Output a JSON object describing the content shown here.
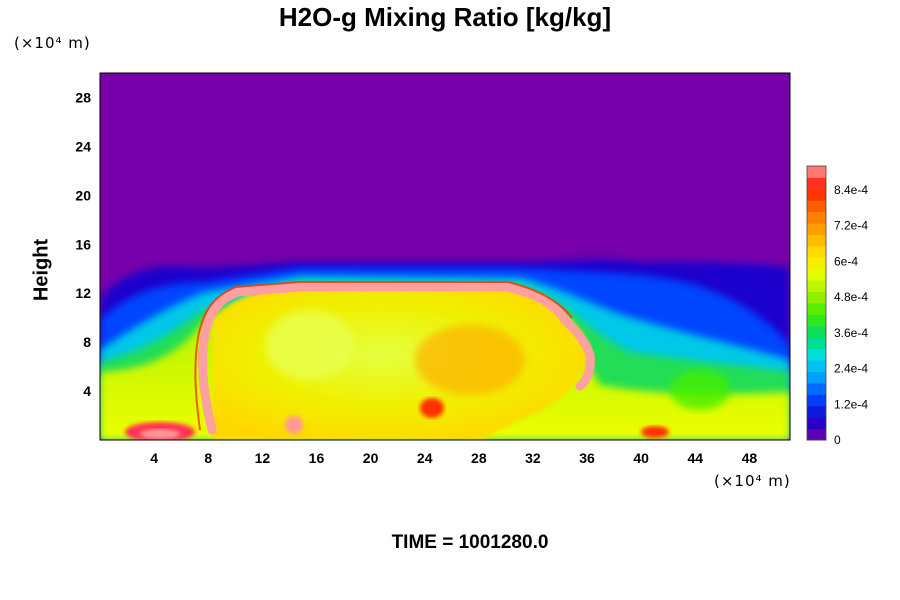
{
  "chart_data": {
    "type": "heatmap",
    "title": "H2O-g Mixing Ratio [kg/kg]",
    "ylabel": "Height",
    "xlabel": "",
    "y_unit": "(×10⁴ m)",
    "x_unit": "(×10⁴ m)",
    "xlim": [
      0,
      51
    ],
    "ylim": [
      0,
      30
    ],
    "x_ticks": [
      "4",
      "8",
      "12",
      "16",
      "20",
      "24",
      "28",
      "32",
      "36",
      "40",
      "44",
      "48"
    ],
    "y_ticks": [
      "4",
      "8",
      "12",
      "16",
      "20",
      "24",
      "28"
    ],
    "colorbar": {
      "min": 0,
      "max": 0.00092,
      "labels": [
        "0",
        "1.2e-4",
        "2.4e-4",
        "3.6e-4",
        "4.8e-4",
        "6e-4",
        "7.2e-4",
        "8.4e-4"
      ],
      "label_values": [
        0,
        0.00012,
        0.00024,
        0.00036,
        0.00048,
        0.0006,
        0.00072,
        0.00084
      ]
    },
    "field_description": {
      "background_upper": 0,
      "cloud_top_height": 14,
      "core_value": 0.00065,
      "plume_value": 0.00092
    },
    "footer": "TIME = 1001280.0"
  },
  "colors": {
    "background": "#7700aa",
    "colormap": [
      "#7700aa",
      "#1a00cc",
      "#0044ff",
      "#00a0ff",
      "#00e0e0",
      "#00dd66",
      "#44ee00",
      "#a8f000",
      "#eeff00",
      "#ffd800",
      "#ffa000",
      "#ff6600",
      "#ff1a00",
      "#ff9999"
    ]
  }
}
